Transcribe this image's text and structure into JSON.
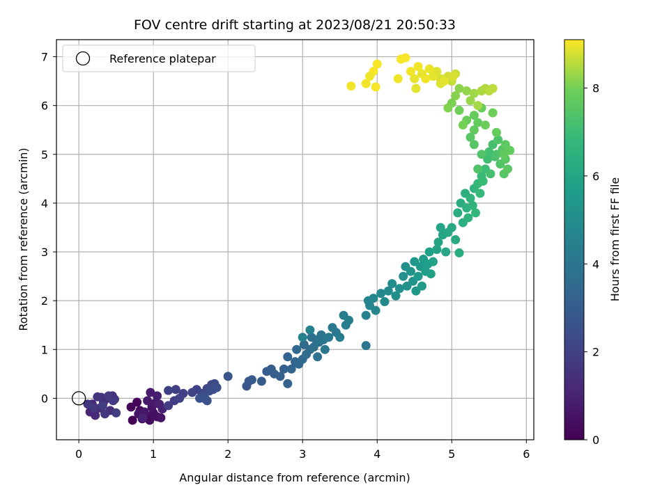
{
  "chart_data": {
    "type": "scatter",
    "title": "FOV centre drift starting at 2023/08/21 20:50:33",
    "xlabel": "Angular distance from reference (arcmin)",
    "ylabel": "Rotation from reference (arcmin)",
    "xlim": [
      -0.3,
      6.1
    ],
    "ylim": [
      -0.85,
      7.35
    ],
    "xticks": [
      "0",
      "1",
      "2",
      "3",
      "4",
      "5",
      "6"
    ],
    "yticks": [
      "0",
      "1",
      "2",
      "3",
      "4",
      "5",
      "6",
      "7"
    ],
    "grid": true,
    "legend": {
      "placement": "upper-left",
      "entries": [
        "Reference platepar"
      ]
    },
    "reference_point": {
      "x": 0,
      "y": 0
    },
    "colorbar": {
      "label": "Hours from first FF file",
      "range": [
        0,
        9.1
      ],
      "ticks": [
        "0",
        "2",
        "4",
        "6",
        "8"
      ],
      "colormap": "viridis"
    },
    "series": [
      {
        "marker": "filled-circle",
        "points": [
          [
            0.72,
            -0.45,
            0.05
          ],
          [
            0.7,
            -0.18,
            0.1
          ],
          [
            0.78,
            -0.08,
            0.15
          ],
          [
            0.82,
            -0.25,
            0.2
          ],
          [
            0.9,
            -0.35,
            0.25
          ],
          [
            0.95,
            -0.45,
            0.3
          ],
          [
            0.85,
            -0.42,
            0.35
          ],
          [
            1.0,
            -0.3,
            0.4
          ],
          [
            1.05,
            -0.38,
            0.45
          ],
          [
            1.1,
            -0.4,
            0.5
          ],
          [
            0.98,
            -0.18,
            0.55
          ],
          [
            0.88,
            -0.28,
            0.6
          ],
          [
            0.8,
            -0.32,
            0.65
          ],
          [
            1.02,
            -0.1,
            0.7
          ],
          [
            0.92,
            -0.05,
            0.75
          ],
          [
            0.96,
            0.12,
            0.8
          ],
          [
            1.05,
            0.05,
            0.85
          ],
          [
            1.08,
            -0.12,
            0.9
          ],
          [
            1.12,
            -0.22,
            0.95
          ],
          [
            0.86,
            -0.4,
            1.0
          ],
          [
            0.15,
            -0.28,
            1.05
          ],
          [
            0.18,
            -0.12,
            1.1
          ],
          [
            0.22,
            -0.35,
            1.15
          ],
          [
            0.28,
            -0.2,
            1.2
          ],
          [
            0.33,
            -0.08,
            1.25
          ],
          [
            0.38,
            0.0,
            1.3
          ],
          [
            0.42,
            -0.25,
            1.35
          ],
          [
            0.45,
            0.05,
            1.4
          ],
          [
            0.3,
            0.02,
            1.45
          ],
          [
            0.25,
            0.03,
            1.5
          ],
          [
            0.48,
            -0.02,
            1.55
          ],
          [
            0.35,
            -0.32,
            1.6
          ],
          [
            0.2,
            -0.2,
            1.65
          ],
          [
            0.12,
            -0.12,
            1.7
          ],
          [
            0.4,
            0.05,
            1.75
          ],
          [
            0.46,
            -0.05,
            1.8
          ],
          [
            0.32,
            -0.15,
            1.85
          ],
          [
            0.5,
            -0.3,
            1.9
          ],
          [
            1.2,
            -0.15,
            1.85
          ],
          [
            1.28,
            -0.05,
            1.9
          ],
          [
            1.3,
            0.18,
            1.95
          ],
          [
            1.4,
            0.1,
            2.0
          ],
          [
            1.52,
            0.12,
            2.05
          ],
          [
            1.58,
            0.18,
            2.1
          ],
          [
            1.65,
            0.1,
            2.15
          ],
          [
            1.7,
            -0.02,
            2.2
          ],
          [
            1.72,
            0.2,
            2.25
          ],
          [
            1.78,
            0.28,
            2.3
          ],
          [
            1.82,
            0.3,
            2.35
          ],
          [
            1.8,
            0.18,
            2.4
          ],
          [
            1.75,
            0.15,
            2.45
          ],
          [
            1.68,
            0.05,
            2.5
          ],
          [
            1.85,
            0.22,
            2.55
          ],
          [
            1.62,
            0.0,
            2.6
          ],
          [
            1.72,
            -0.05,
            2.65
          ],
          [
            1.2,
            0.16,
            2.0
          ],
          [
            1.35,
            0.0,
            2.05
          ],
          [
            2.0,
            0.45,
            2.7
          ],
          [
            2.25,
            0.25,
            2.75
          ],
          [
            2.28,
            0.35,
            2.8
          ],
          [
            2.32,
            0.38,
            2.85
          ],
          [
            2.45,
            0.35,
            2.9
          ],
          [
            2.52,
            0.55,
            2.95
          ],
          [
            2.58,
            0.6,
            3.0
          ],
          [
            2.62,
            0.5,
            3.05
          ],
          [
            2.7,
            0.45,
            3.1
          ],
          [
            2.75,
            0.6,
            3.15
          ],
          [
            2.8,
            0.3,
            3.2
          ],
          [
            2.8,
            0.85,
            3.25
          ],
          [
            2.85,
            0.6,
            3.3
          ],
          [
            2.9,
            0.75,
            3.35
          ],
          [
            2.92,
            1.0,
            3.4
          ],
          [
            2.95,
            0.7,
            3.45
          ],
          [
            3.0,
            0.8,
            3.5
          ],
          [
            3.02,
            1.1,
            3.55
          ],
          [
            3.05,
            0.9,
            3.6
          ],
          [
            3.1,
            1.0,
            3.65
          ],
          [
            3.12,
            1.25,
            3.7
          ],
          [
            3.15,
            1.05,
            3.75
          ],
          [
            3.18,
            1.2,
            3.8
          ],
          [
            3.2,
            0.85,
            3.85
          ],
          [
            3.22,
            1.15,
            3.9
          ],
          [
            3.25,
            1.3,
            3.95
          ],
          [
            3.28,
            1.2,
            4.0
          ],
          [
            3.3,
            1.0,
            4.05
          ],
          [
            3.35,
            1.25,
            4.1
          ],
          [
            3.4,
            1.45,
            4.15
          ],
          [
            3.45,
            1.35,
            4.2
          ],
          [
            3.5,
            1.25,
            4.25
          ],
          [
            3.55,
            1.7,
            4.3
          ],
          [
            3.58,
            1.5,
            4.35
          ],
          [
            3.62,
            1.6,
            4.4
          ],
          [
            3.0,
            1.25,
            4.45
          ],
          [
            3.1,
            1.4,
            4.5
          ],
          [
            3.85,
            1.08,
            4.0
          ],
          [
            3.85,
            1.7,
            4.55
          ],
          [
            3.88,
            2.0,
            4.6
          ],
          [
            3.9,
            1.9,
            4.65
          ],
          [
            3.95,
            2.05,
            4.7
          ],
          [
            3.98,
            1.8,
            4.75
          ],
          [
            4.05,
            2.15,
            4.8
          ],
          [
            4.1,
            1.98,
            4.85
          ],
          [
            4.15,
            2.2,
            4.9
          ],
          [
            4.2,
            2.35,
            4.95
          ],
          [
            4.25,
            2.1,
            5.0
          ],
          [
            4.3,
            2.25,
            5.05
          ],
          [
            4.35,
            2.5,
            5.1
          ],
          [
            4.38,
            2.7,
            5.15
          ],
          [
            4.4,
            2.3,
            5.2
          ],
          [
            4.45,
            2.6,
            5.25
          ],
          [
            4.48,
            2.4,
            5.3
          ],
          [
            4.5,
            2.8,
            5.35
          ],
          [
            4.52,
            2.2,
            5.4
          ],
          [
            4.55,
            2.5,
            5.45
          ],
          [
            4.58,
            2.7,
            5.5
          ],
          [
            4.6,
            2.3,
            5.55
          ],
          [
            4.62,
            2.85,
            5.6
          ],
          [
            4.65,
            2.6,
            5.65
          ],
          [
            4.68,
            2.75,
            5.7
          ],
          [
            4.7,
            3.0,
            5.75
          ],
          [
            4.72,
            2.55,
            5.8
          ],
          [
            4.75,
            2.8,
            5.85
          ],
          [
            4.8,
            3.05,
            5.9
          ],
          [
            4.82,
            3.2,
            5.95
          ],
          [
            4.88,
            3.35,
            6.0
          ],
          [
            4.92,
            3.0,
            6.05
          ],
          [
            4.95,
            3.4,
            6.1
          ],
          [
            5.0,
            3.5,
            6.15
          ],
          [
            5.05,
            3.25,
            6.2
          ],
          [
            5.1,
            2.98,
            6.25
          ],
          [
            5.08,
            3.8,
            6.3
          ],
          [
            5.12,
            4.0,
            6.35
          ],
          [
            5.15,
            3.6,
            6.4
          ],
          [
            5.18,
            4.2,
            6.45
          ],
          [
            5.2,
            3.9,
            6.5
          ],
          [
            5.22,
            3.7,
            6.55
          ],
          [
            5.25,
            4.1,
            6.6
          ],
          [
            5.28,
            3.95,
            6.65
          ],
          [
            5.3,
            4.3,
            6.7
          ],
          [
            5.32,
            3.8,
            6.75
          ],
          [
            5.35,
            4.4,
            6.8
          ],
          [
            5.38,
            4.2,
            6.85
          ],
          [
            5.4,
            4.55,
            6.9
          ],
          [
            5.42,
            4.45,
            6.95
          ],
          [
            4.85,
            3.5,
            6.0
          ],
          [
            5.45,
            4.7,
            7.0
          ],
          [
            5.48,
            4.9,
            7.05
          ],
          [
            5.5,
            5.05,
            7.1
          ],
          [
            5.52,
            4.6,
            7.15
          ],
          [
            5.55,
            5.2,
            7.2
          ],
          [
            5.58,
            4.95,
            7.25
          ],
          [
            5.6,
            5.0,
            7.3
          ],
          [
            5.62,
            5.3,
            7.35
          ],
          [
            5.65,
            4.8,
            7.4
          ],
          [
            5.68,
            5.1,
            7.45
          ],
          [
            5.7,
            4.6,
            7.5
          ],
          [
            5.72,
            4.9,
            7.55
          ],
          [
            5.75,
            4.7,
            7.6
          ],
          [
            5.72,
            5.2,
            7.65
          ],
          [
            5.7,
            5.0,
            7.7
          ],
          [
            5.78,
            5.08,
            7.75
          ],
          [
            5.4,
            5.0,
            7.4
          ],
          [
            5.35,
            4.7,
            7.35
          ],
          [
            5.3,
            5.2,
            7.5
          ],
          [
            5.25,
            5.35,
            7.55
          ],
          [
            5.3,
            5.5,
            7.7
          ],
          [
            5.35,
            5.65,
            7.75
          ],
          [
            5.3,
            5.8,
            7.8
          ],
          [
            5.4,
            5.95,
            7.85
          ],
          [
            5.45,
            5.6,
            7.9
          ],
          [
            5.55,
            5.85,
            7.95
          ],
          [
            5.6,
            5.45,
            7.8
          ],
          [
            5.2,
            5.7,
            7.85
          ],
          [
            5.1,
            5.9,
            7.95
          ],
          [
            5.15,
            5.6,
            8.0
          ],
          [
            5.0,
            6.05,
            8.05
          ],
          [
            4.95,
            5.95,
            8.1
          ],
          [
            5.05,
            6.2,
            8.15
          ],
          [
            5.1,
            6.35,
            8.2
          ],
          [
            5.2,
            6.3,
            8.25
          ],
          [
            5.25,
            6.1,
            8.3
          ],
          [
            5.3,
            6.25,
            8.35
          ],
          [
            5.35,
            6.0,
            8.4
          ],
          [
            5.4,
            6.3,
            8.45
          ],
          [
            5.45,
            6.35,
            8.5
          ],
          [
            5.5,
            6.3,
            8.55
          ],
          [
            5.55,
            6.35,
            8.6
          ],
          [
            5.0,
            6.5,
            8.65
          ],
          [
            5.05,
            6.65,
            8.7
          ],
          [
            4.95,
            6.6,
            8.75
          ],
          [
            4.85,
            6.55,
            8.8
          ],
          [
            4.8,
            6.7,
            8.85
          ],
          [
            4.75,
            6.6,
            8.9
          ],
          [
            4.7,
            6.75,
            8.95
          ],
          [
            4.65,
            6.55,
            9.0
          ],
          [
            4.6,
            6.65,
            8.95
          ],
          [
            4.55,
            6.8,
            9.0
          ],
          [
            4.52,
            6.35,
            8.9
          ],
          [
            4.5,
            6.55,
            8.9
          ],
          [
            4.45,
            6.7,
            9.0
          ],
          [
            4.38,
            6.98,
            9.05
          ],
          [
            4.32,
            6.95,
            9.05
          ],
          [
            4.28,
            6.55,
            9.0
          ],
          [
            4.0,
            6.85,
            9.05
          ],
          [
            3.95,
            6.7,
            9.05
          ],
          [
            3.9,
            6.6,
            9.0
          ],
          [
            3.85,
            6.45,
            9.0
          ],
          [
            3.98,
            6.38,
            9.05
          ],
          [
            3.65,
            6.4,
            9.0
          ],
          [
            4.9,
            6.5,
            8.9
          ],
          [
            5.02,
            6.6,
            8.8
          ],
          [
            4.85,
            6.45,
            8.85
          ]
        ]
      }
    ]
  }
}
